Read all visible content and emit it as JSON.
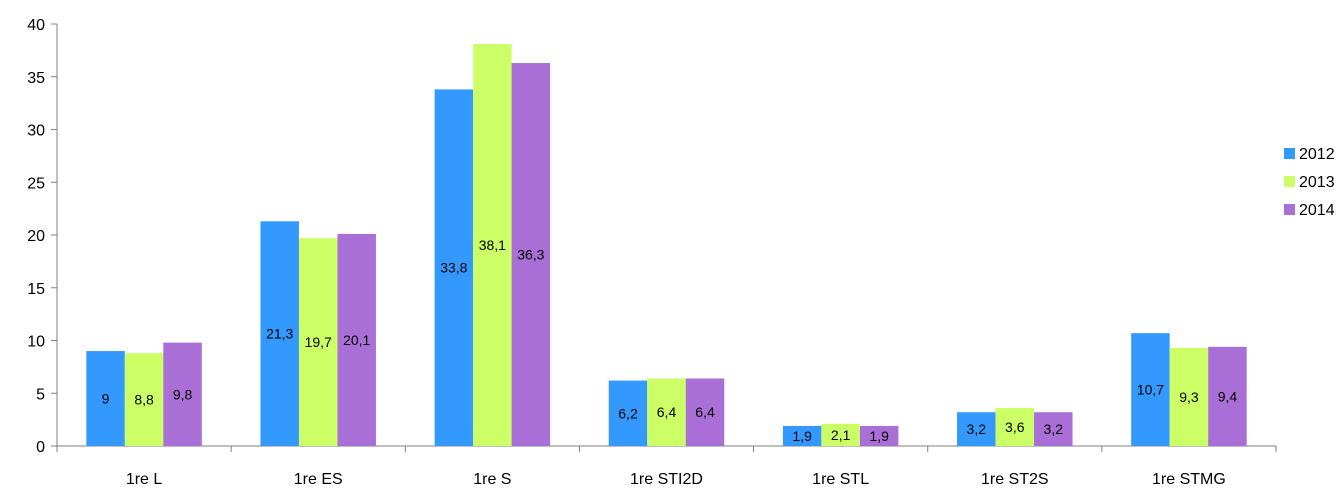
{
  "chart_data": {
    "type": "bar",
    "title": "",
    "xlabel": "",
    "ylabel": "",
    "ylim": [
      0,
      40
    ],
    "yticks": [
      0,
      5,
      10,
      15,
      20,
      25,
      30,
      35,
      40
    ],
    "grid": false,
    "legend_position": "right",
    "categories": [
      "1re L",
      "1re ES",
      "1re S",
      "1re STI2D",
      "1re STL",
      "1re ST2S",
      "1re STMG"
    ],
    "series": [
      {
        "name": "2012",
        "color": "#3399FF",
        "values": [
          9,
          21.3,
          33.8,
          6.2,
          1.9,
          3.2,
          10.7
        ],
        "labels": [
          "9",
          "21,3",
          "33,8",
          "6,2",
          "1,9",
          "3,2",
          "10,7"
        ]
      },
      {
        "name": "2013",
        "color": "#CCFF66",
        "values": [
          8.8,
          19.7,
          38.1,
          6.4,
          2.1,
          3.6,
          9.3
        ],
        "labels": [
          "8,8",
          "19,7",
          "38,1",
          "6,4",
          "2,1",
          "3,6",
          "9,3"
        ]
      },
      {
        "name": "2014",
        "color": "#A96FD6",
        "values": [
          9.8,
          20.1,
          36.3,
          6.4,
          1.9,
          3.2,
          9.4
        ],
        "labels": [
          "9,8",
          "20,1",
          "36,3",
          "6,4",
          "1,9",
          "3,2",
          "9,4"
        ]
      }
    ]
  }
}
